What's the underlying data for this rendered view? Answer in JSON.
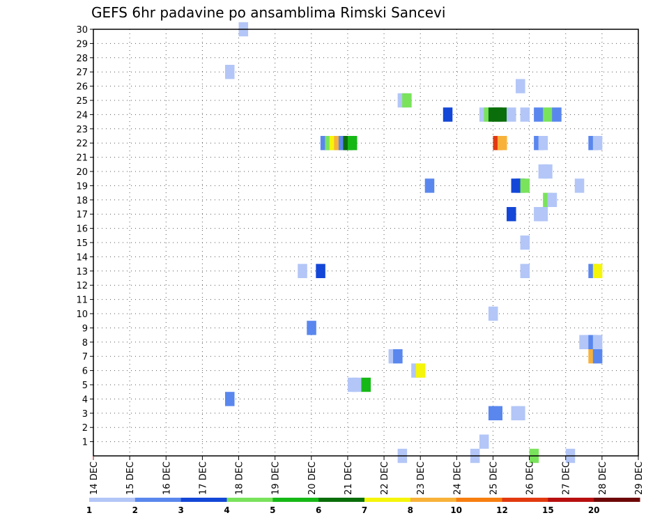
{
  "chart_data": {
    "type": "heatmap",
    "title": "GEFS 6hr padavine po ansamblima Rimski Sancevi",
    "xlabel": "",
    "ylabel": "",
    "x_tick_labels": [
      "14 DEC",
      "15 DEC",
      "16 DEC",
      "17 DEC",
      "18 DEC",
      "19 DEC",
      "20 DEC",
      "21 DEC",
      "22 DEC",
      "23 DEC",
      "24 DEC",
      "25 DEC",
      "26 DEC",
      "27 DEC",
      "28 DEC",
      "29 DEC"
    ],
    "y_tick_labels": [
      "1",
      "2",
      "3",
      "4",
      "5",
      "6",
      "7",
      "8",
      "9",
      "10",
      "11",
      "12",
      "13",
      "14",
      "15",
      "16",
      "17",
      "18",
      "19",
      "20",
      "21",
      "22",
      "23",
      "24",
      "25",
      "26",
      "27",
      "28",
      "29",
      "30"
    ],
    "xlim_days": [
      14,
      29
    ],
    "ylim_members": [
      0,
      30
    ],
    "grid": true,
    "colorbar": {
      "colors": [
        "#b3c6f7",
        "#5a87ee",
        "#1447d7",
        "#7ae35c",
        "#16b816",
        "#0a6e0a",
        "#f5f50a",
        "#f8b23a",
        "#f77e10",
        "#e23a10",
        "#b81010",
        "#6e0808"
      ],
      "labels": [
        "1",
        "2",
        "3",
        "4",
        "5",
        "6",
        "7",
        "8",
        "10",
        "12",
        "15",
        "20"
      ]
    },
    "cells_format": "[day, member, color_index]",
    "cells": [
      [
        18.0,
        30,
        0
      ],
      [
        17.625,
        27,
        0
      ],
      [
        17.625,
        4,
        1
      ],
      [
        25.625,
        26,
        0
      ],
      [
        22.375,
        25,
        0
      ],
      [
        22.5,
        25,
        3
      ],
      [
        23.625,
        24,
        2
      ],
      [
        24.625,
        24,
        0
      ],
      [
        24.75,
        24,
        3
      ],
      [
        24.875,
        24,
        5
      ],
      [
        25.0,
        24,
        5
      ],
      [
        25.125,
        24,
        5
      ],
      [
        25.375,
        24,
        0
      ],
      [
        25.75,
        24,
        0
      ],
      [
        26.125,
        24,
        1
      ],
      [
        26.375,
        24,
        3
      ],
      [
        26.625,
        24,
        1
      ],
      [
        20.25,
        22,
        1
      ],
      [
        20.375,
        22,
        3
      ],
      [
        20.5,
        22,
        6
      ],
      [
        20.625,
        22,
        7
      ],
      [
        20.75,
        22,
        1
      ],
      [
        20.875,
        22,
        5
      ],
      [
        21.0,
        22,
        4
      ],
      [
        25.0,
        22,
        9
      ],
      [
        25.125,
        22,
        7
      ],
      [
        26.125,
        22,
        1
      ],
      [
        26.25,
        22,
        0
      ],
      [
        27.625,
        22,
        1
      ],
      [
        27.75,
        22,
        0
      ],
      [
        26.25,
        20,
        0
      ],
      [
        26.375,
        20,
        0
      ],
      [
        23.125,
        19,
        1
      ],
      [
        25.5,
        19,
        2
      ],
      [
        25.625,
        19,
        2
      ],
      [
        25.75,
        19,
        3
      ],
      [
        27.25,
        19,
        0
      ],
      [
        26.375,
        18,
        3
      ],
      [
        26.5,
        18,
        0
      ],
      [
        25.375,
        17,
        2
      ],
      [
        26.125,
        17,
        0
      ],
      [
        26.25,
        17,
        0
      ],
      [
        25.75,
        15,
        0
      ],
      [
        19.625,
        13,
        0
      ],
      [
        20.125,
        13,
        2
      ],
      [
        25.75,
        13,
        0
      ],
      [
        27.625,
        13,
        1
      ],
      [
        27.75,
        13,
        6
      ],
      [
        24.875,
        10,
        0
      ],
      [
        19.875,
        9,
        1
      ],
      [
        27.375,
        8,
        0
      ],
      [
        27.5,
        8,
        0
      ],
      [
        27.625,
        8,
        1
      ],
      [
        27.75,
        8,
        0
      ],
      [
        22.125,
        7,
        0
      ],
      [
        22.25,
        7,
        1
      ],
      [
        27.625,
        7,
        7
      ],
      [
        27.75,
        7,
        1
      ],
      [
        22.75,
        6,
        0
      ],
      [
        22.875,
        6,
        6
      ],
      [
        21.0,
        5,
        0
      ],
      [
        21.125,
        5,
        0
      ],
      [
        21.375,
        5,
        4
      ],
      [
        24.875,
        3,
        1
      ],
      [
        25.0,
        3,
        1
      ],
      [
        25.5,
        3,
        0
      ],
      [
        25.625,
        3,
        0
      ],
      [
        24.625,
        1,
        0
      ],
      [
        22.375,
        0,
        0
      ],
      [
        24.375,
        0,
        0
      ],
      [
        26.0,
        0,
        3
      ],
      [
        27.0,
        0,
        0
      ]
    ]
  }
}
